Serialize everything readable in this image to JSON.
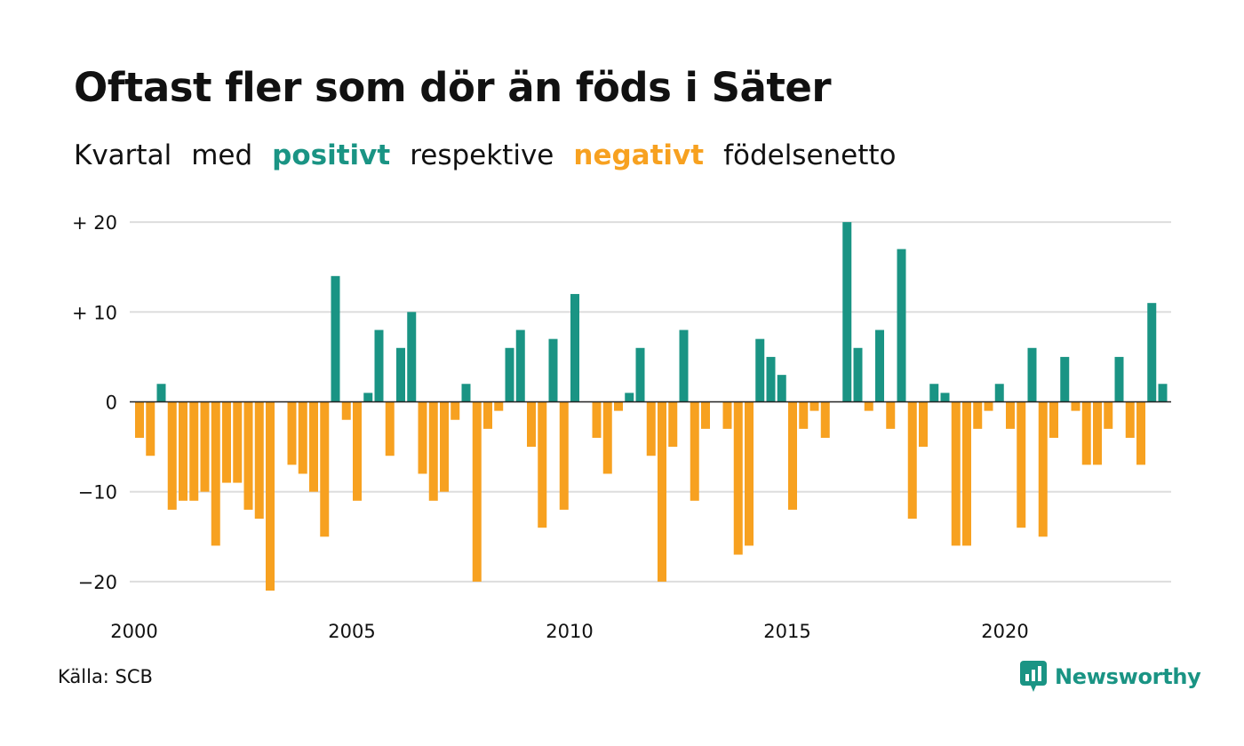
{
  "title": "Oftast fler som dör än föds i Säter",
  "subtitle": {
    "part1": "Kvartal",
    "part2": "med",
    "positive": "positivt",
    "part3": "respektive",
    "negative": "negativt",
    "part4": "födelsenetto"
  },
  "source": "Källa: SCB",
  "brand": {
    "name": "Newsworthy",
    "icon": "newsworthy-chart-icon"
  },
  "colors": {
    "positive": "#1a9484",
    "negative": "#f7a120",
    "grid": "#dddddd",
    "zero_line": "#222222"
  },
  "chart_data": {
    "type": "bar",
    "x_start": 2000,
    "x_step_per_bar": 0.25,
    "x_tick_labels": [
      "2000",
      "2005",
      "2010",
      "2015",
      "2020"
    ],
    "x_tick_values": [
      2000,
      2005,
      2010,
      2015,
      2020
    ],
    "y_tick_labels": [
      "+ 20",
      "+ 10",
      "0",
      "−10",
      "−20"
    ],
    "y_tick_values": [
      20,
      10,
      0,
      -10,
      -20
    ],
    "ylim": [
      -21.5,
      20
    ],
    "grid": true,
    "values": [
      -4,
      -6,
      2,
      -12,
      -11,
      -11,
      -10,
      -16,
      -9,
      -9,
      -12,
      -13,
      -21,
      0,
      -7,
      -8,
      -10,
      -15,
      14,
      -2,
      -11,
      1,
      8,
      -6,
      6,
      10,
      -8,
      -11,
      -10,
      -2,
      2,
      -20,
      -3,
      -1,
      6,
      8,
      -5,
      -14,
      7,
      -12,
      12,
      0,
      -4,
      -8,
      -1,
      1,
      6,
      -6,
      -20,
      -5,
      8,
      -11,
      -3,
      0,
      -3,
      -17,
      -16,
      7,
      5,
      3,
      -12,
      -3,
      -1,
      -4,
      0,
      20,
      6,
      -1,
      8,
      -3,
      17,
      -13,
      -5,
      2,
      1,
      -16,
      -16,
      -3,
      -1,
      2,
      -3,
      -14,
      6,
      -15,
      -4,
      5,
      -1,
      -7,
      -7,
      -3,
      5,
      -4,
      -7,
      11,
      2
    ]
  }
}
